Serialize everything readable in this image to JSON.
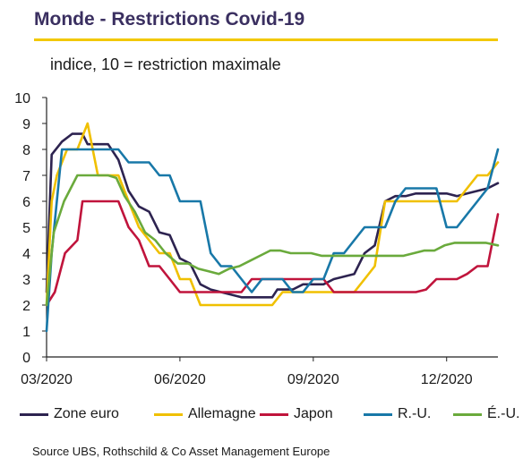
{
  "chart_data": {
    "type": "line",
    "title": "Monde - Restrictions Covid-19",
    "subtitle": "indice, 10 = restriction maximale",
    "source": "Source UBS, Rothschild & Co Asset Management Europe",
    "xlabel": "",
    "ylabel": "",
    "ylim": [
      0,
      10
    ],
    "yticks": [
      0,
      1,
      2,
      3,
      4,
      5,
      6,
      7,
      8,
      9,
      10
    ],
    "xticks": [
      {
        "label": "03/2020",
        "x": 0
      },
      {
        "label": "06/2020",
        "x": 13
      },
      {
        "label": "09/2020",
        "x": 26
      },
      {
        "label": "12/2020",
        "x": 39
      }
    ],
    "xlim": [
      0,
      44
    ],
    "grid": false,
    "legend_position": "bottom",
    "colors": {
      "title": "#3a2f60",
      "rule": "#f2c800",
      "axis": "#222222"
    },
    "series": [
      {
        "name": "Zone euro",
        "color": "#2d2350",
        "points": [
          [
            0,
            2.5
          ],
          [
            0.5,
            7.8
          ],
          [
            1.5,
            8.3
          ],
          [
            2.5,
            8.6
          ],
          [
            3.5,
            8.6
          ],
          [
            4,
            8.2
          ],
          [
            5,
            8.2
          ],
          [
            6,
            8.2
          ],
          [
            7,
            7.6
          ],
          [
            8,
            6.4
          ],
          [
            9,
            5.8
          ],
          [
            10,
            5.6
          ],
          [
            11,
            4.8
          ],
          [
            12,
            4.7
          ],
          [
            13,
            3.8
          ],
          [
            14,
            3.6
          ],
          [
            15,
            2.8
          ],
          [
            16,
            2.6
          ],
          [
            17,
            2.5
          ],
          [
            18,
            2.4
          ],
          [
            19,
            2.3
          ],
          [
            20,
            2.3
          ],
          [
            21,
            2.3
          ],
          [
            22,
            2.3
          ],
          [
            22.5,
            2.6
          ],
          [
            23,
            2.6
          ],
          [
            24,
            2.6
          ],
          [
            25,
            2.8
          ],
          [
            26,
            2.8
          ],
          [
            27,
            2.8
          ],
          [
            28,
            3.0
          ],
          [
            29,
            3.1
          ],
          [
            30,
            3.2
          ],
          [
            31,
            4.0
          ],
          [
            32,
            4.3
          ],
          [
            33,
            6.0
          ],
          [
            34,
            6.2
          ],
          [
            35,
            6.2
          ],
          [
            36,
            6.3
          ],
          [
            37,
            6.3
          ],
          [
            38,
            6.3
          ],
          [
            39,
            6.3
          ],
          [
            40,
            6.2
          ],
          [
            41,
            6.3
          ],
          [
            42,
            6.4
          ],
          [
            43,
            6.5
          ],
          [
            44,
            6.7
          ]
        ]
      },
      {
        "name": "Allemagne",
        "color": "#f0c000",
        "points": [
          [
            0,
            2.0
          ],
          [
            0.5,
            6.0
          ],
          [
            1,
            7.0
          ],
          [
            2,
            8.0
          ],
          [
            3,
            8.0
          ],
          [
            4,
            9.0
          ],
          [
            5,
            7.0
          ],
          [
            6,
            7.0
          ],
          [
            7,
            7.0
          ],
          [
            8,
            6.0
          ],
          [
            9,
            5.0
          ],
          [
            10,
            4.5
          ],
          [
            11,
            4.0
          ],
          [
            12,
            4.0
          ],
          [
            13,
            3.0
          ],
          [
            14,
            3.0
          ],
          [
            15,
            2.0
          ],
          [
            16,
            2.0
          ],
          [
            17,
            2.0
          ],
          [
            18,
            2.0
          ],
          [
            19,
            2.0
          ],
          [
            20,
            2.0
          ],
          [
            21,
            2.0
          ],
          [
            22,
            2.0
          ],
          [
            23,
            2.5
          ],
          [
            24,
            2.5
          ],
          [
            25,
            2.5
          ],
          [
            26,
            2.5
          ],
          [
            27,
            2.5
          ],
          [
            28,
            2.5
          ],
          [
            29,
            2.5
          ],
          [
            30,
            2.5
          ],
          [
            31,
            3.0
          ],
          [
            32,
            3.5
          ],
          [
            33,
            6.0
          ],
          [
            34,
            6.0
          ],
          [
            35,
            6.0
          ],
          [
            36,
            6.0
          ],
          [
            37,
            6.0
          ],
          [
            38,
            6.0
          ],
          [
            39,
            6.0
          ],
          [
            40,
            6.0
          ],
          [
            41,
            6.5
          ],
          [
            42,
            7.0
          ],
          [
            43,
            7.0
          ],
          [
            44,
            7.5
          ]
        ]
      },
      {
        "name": "Japon",
        "color": "#c0143c",
        "points": [
          [
            0,
            2.0
          ],
          [
            0.8,
            2.5
          ],
          [
            1.8,
            4.0
          ],
          [
            3,
            4.5
          ],
          [
            3.5,
            6.0
          ],
          [
            5,
            6.0
          ],
          [
            6,
            6.0
          ],
          [
            7,
            6.0
          ],
          [
            8,
            5.0
          ],
          [
            9,
            4.5
          ],
          [
            10,
            3.5
          ],
          [
            11,
            3.5
          ],
          [
            12,
            3.0
          ],
          [
            13,
            2.5
          ],
          [
            14,
            2.5
          ],
          [
            15,
            2.5
          ],
          [
            16,
            2.5
          ],
          [
            17,
            2.5
          ],
          [
            18,
            2.5
          ],
          [
            19,
            2.5
          ],
          [
            20,
            3.0
          ],
          [
            21,
            3.0
          ],
          [
            22,
            3.0
          ],
          [
            23,
            3.0
          ],
          [
            24,
            3.0
          ],
          [
            25,
            3.0
          ],
          [
            26,
            3.0
          ],
          [
            27,
            3.0
          ],
          [
            28,
            2.5
          ],
          [
            29,
            2.5
          ],
          [
            30,
            2.5
          ],
          [
            31,
            2.5
          ],
          [
            32,
            2.5
          ],
          [
            33,
            2.5
          ],
          [
            34,
            2.5
          ],
          [
            35,
            2.5
          ],
          [
            36,
            2.5
          ],
          [
            37,
            2.6
          ],
          [
            38,
            3.0
          ],
          [
            39,
            3.0
          ],
          [
            40,
            3.0
          ],
          [
            41,
            3.2
          ],
          [
            42,
            3.5
          ],
          [
            43,
            3.5
          ],
          [
            44,
            5.5
          ]
        ]
      },
      {
        "name": "R.-U.",
        "color": "#1878a8",
        "points": [
          [
            0,
            1.0
          ],
          [
            0.5,
            4.0
          ],
          [
            1.5,
            8.0
          ],
          [
            3,
            8.0
          ],
          [
            4,
            8.0
          ],
          [
            5,
            8.0
          ],
          [
            6,
            8.0
          ],
          [
            7,
            8.0
          ],
          [
            8,
            7.5
          ],
          [
            9,
            7.5
          ],
          [
            10,
            7.5
          ],
          [
            11,
            7.0
          ],
          [
            12,
            7.0
          ],
          [
            13,
            6.0
          ],
          [
            14,
            6.0
          ],
          [
            15,
            6.0
          ],
          [
            16,
            4.0
          ],
          [
            17,
            3.5
          ],
          [
            18,
            3.5
          ],
          [
            19,
            3.0
          ],
          [
            20,
            2.5
          ],
          [
            21,
            3.0
          ],
          [
            22,
            3.0
          ],
          [
            23,
            3.0
          ],
          [
            24,
            2.5
          ],
          [
            25,
            2.5
          ],
          [
            26,
            3.0
          ],
          [
            27,
            3.0
          ],
          [
            28,
            4.0
          ],
          [
            29,
            4.0
          ],
          [
            30,
            4.5
          ],
          [
            31,
            5.0
          ],
          [
            32,
            5.0
          ],
          [
            33,
            5.0
          ],
          [
            34,
            6.0
          ],
          [
            35,
            6.5
          ],
          [
            36,
            6.5
          ],
          [
            37,
            6.5
          ],
          [
            38,
            6.5
          ],
          [
            39,
            5.0
          ],
          [
            40,
            5.0
          ],
          [
            41,
            5.5
          ],
          [
            42,
            6.0
          ],
          [
            43,
            6.5
          ],
          [
            44,
            8.0
          ]
        ]
      },
      {
        "name": "É.-U.",
        "color": "#6aaa3c",
        "points": [
          [
            0,
            2.0
          ],
          [
            0.7,
            4.8
          ],
          [
            1.7,
            6.0
          ],
          [
            3,
            7.0
          ],
          [
            4,
            7.0
          ],
          [
            5,
            7.0
          ],
          [
            6,
            7.0
          ],
          [
            6.8,
            6.9
          ],
          [
            7.6,
            6.2
          ],
          [
            8.6,
            5.6
          ],
          [
            9.6,
            4.8
          ],
          [
            10.6,
            4.5
          ],
          [
            11.6,
            4.0
          ],
          [
            12.8,
            3.6
          ],
          [
            13.8,
            3.6
          ],
          [
            14.8,
            3.4
          ],
          [
            15.8,
            3.3
          ],
          [
            16.8,
            3.2
          ],
          [
            17.8,
            3.4
          ],
          [
            18.8,
            3.5
          ],
          [
            19.8,
            3.7
          ],
          [
            20.8,
            3.9
          ],
          [
            21.8,
            4.1
          ],
          [
            22.8,
            4.1
          ],
          [
            23.8,
            4.0
          ],
          [
            24.8,
            4.0
          ],
          [
            25.8,
            4.0
          ],
          [
            26.8,
            3.9
          ],
          [
            27.8,
            3.9
          ],
          [
            28.8,
            3.9
          ],
          [
            29.8,
            3.9
          ],
          [
            30.8,
            3.9
          ],
          [
            31.8,
            3.9
          ],
          [
            32.8,
            3.9
          ],
          [
            33.8,
            3.9
          ],
          [
            34.8,
            3.9
          ],
          [
            35.8,
            4.0
          ],
          [
            36.8,
            4.1
          ],
          [
            37.8,
            4.1
          ],
          [
            38.8,
            4.3
          ],
          [
            39.8,
            4.4
          ],
          [
            40.8,
            4.4
          ],
          [
            41.8,
            4.4
          ],
          [
            42.8,
            4.4
          ],
          [
            44,
            4.3
          ]
        ]
      }
    ]
  }
}
